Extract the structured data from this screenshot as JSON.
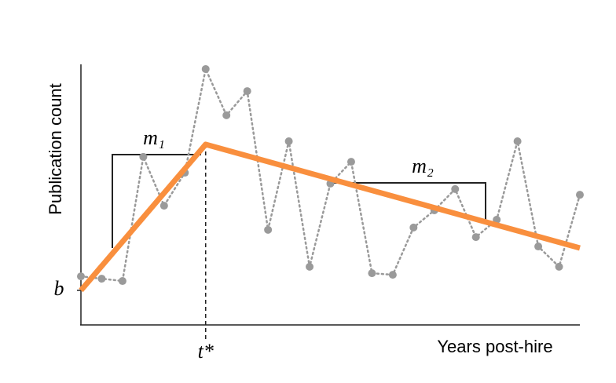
{
  "chart_data": {
    "type": "line",
    "xlabel": "Years post-hire",
    "ylabel": "Publication count",
    "xlim": [
      0,
      24
    ],
    "ylim": [
      0,
      10
    ],
    "xticks": [
      {
        "value": 6,
        "label": "t*"
      }
    ],
    "yticks": [
      {
        "value": 1.3,
        "label": "b"
      }
    ],
    "annotations": [
      "m₁",
      "m₂"
    ],
    "series": [
      {
        "color": "#9a9a9a",
        "style": "dotted",
        "markers": true,
        "x": [
          0,
          1,
          2,
          3,
          4,
          5,
          6,
          7,
          8,
          9,
          10,
          11,
          12,
          13,
          14,
          15,
          16,
          17,
          18,
          19,
          20,
          21,
          22,
          23,
          24
        ],
        "values": [
          1.84,
          1.75,
          1.66,
          6.44,
          4.56,
          5.83,
          9.82,
          8.04,
          8.97,
          3.63,
          7.04,
          2.21,
          5.41,
          6.25,
          1.96,
          1.9,
          3.72,
          4.38,
          5.2,
          3.35,
          4.02,
          7.04,
          2.99,
          2.21,
          4.98
        ]
      },
      {
        "color": "#f98f3e",
        "style": "solid",
        "markers": false,
        "x": [
          0,
          6,
          24
        ],
        "values": [
          1.3,
          6.92,
          2.93
        ]
      }
    ]
  }
}
